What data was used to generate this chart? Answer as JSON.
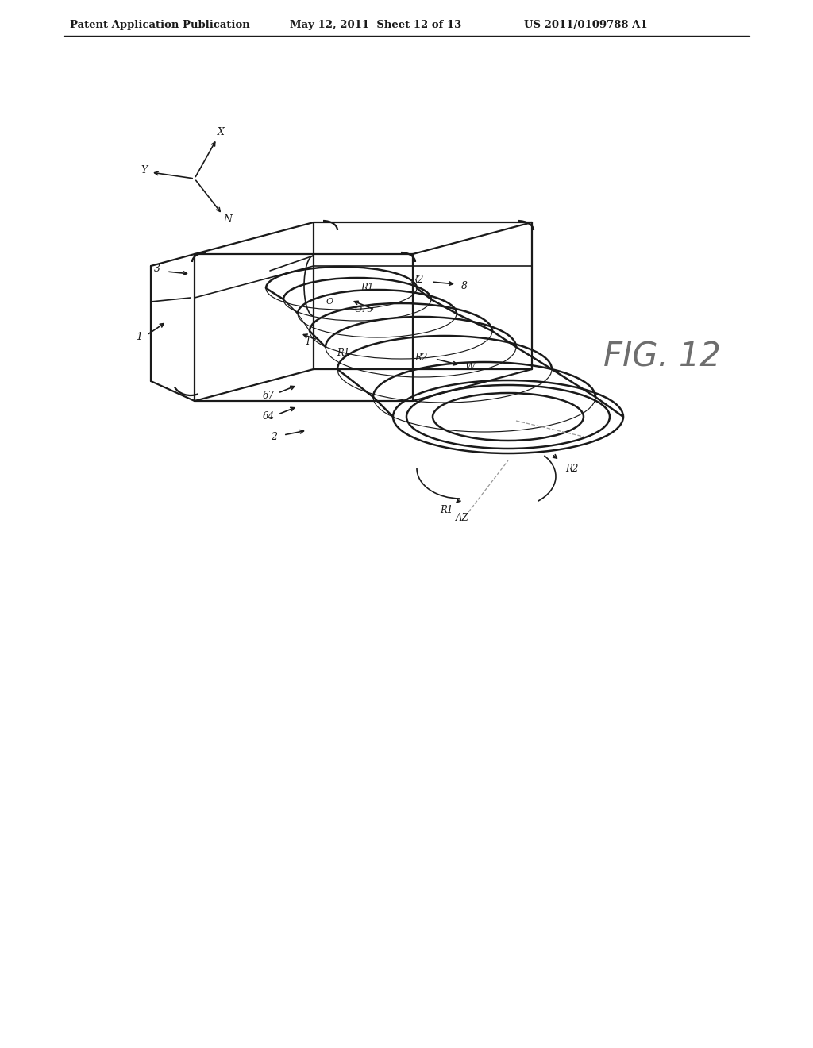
{
  "bg_color": "#ffffff",
  "line_color": "#1a1a1a",
  "header_text": "Patent Application Publication",
  "header_date": "May 12, 2011  Sheet 12 of 13",
  "header_patent": "US 2011/0109788 A1",
  "fig_label": "FIG. 12",
  "label_1": "1",
  "label_2": "2",
  "label_3": "3",
  "label_64": "64",
  "label_67": "67",
  "label_O": "O",
  "label_OS": "O. 5",
  "label_T": "T",
  "label_W": "W",
  "label_R1_upper": "R1",
  "label_R2_upper": "R2",
  "label_8": "8",
  "label_R1_lower": "R1",
  "label_R2_lower": "R2",
  "label_R1_bottom": "R1",
  "label_R2_bottom": "R2",
  "label_AZ": "AZ",
  "label_X": "X",
  "label_Y": "Y",
  "label_Z": "N"
}
